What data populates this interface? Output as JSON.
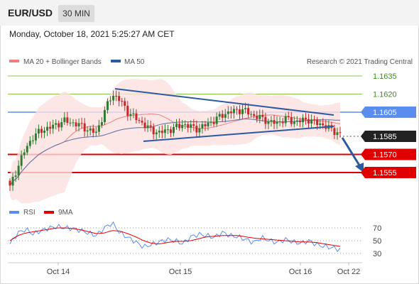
{
  "header": {
    "symbol": "EUR/USD",
    "timeframe": "30 MIN"
  },
  "datetime": "Monday, October 18, 2021 5:25:27 AM CET",
  "copyright": "Research © 2021 Trading Central",
  "legend": {
    "bb": "MA 20 + Bollinger Bands",
    "ma50": "MA 50"
  },
  "rsi_legend": {
    "rsi": "RSI",
    "ma9": "9MA"
  },
  "colors": {
    "up": "#2e7d32",
    "down": "#c62828",
    "resistance": "#8bc34a",
    "pivot": "#5b8def",
    "support": "#e00000",
    "trend": "#2c5aa0",
    "bb_band": "#fde0e0",
    "bb_mid": "#f08080",
    "ma50": "#5a6fa0"
  },
  "chart_data": {
    "type": "candlestick",
    "x_labels": [
      "Oct 14",
      "Oct 15",
      "Oct 16",
      "Oct 22"
    ],
    "y_min": 1.154,
    "y_max": 1.165,
    "levels": [
      {
        "value": 1.1635,
        "label": "1.1635",
        "kind": "resistance"
      },
      {
        "value": 1.162,
        "label": "1.1620",
        "kind": "resistance"
      },
      {
        "value": 1.1605,
        "label": "1.1605",
        "kind": "pivot"
      },
      {
        "value": 1.1585,
        "label": "1.1585",
        "kind": "last"
      },
      {
        "value": 1.157,
        "label": "1.1570",
        "kind": "support"
      },
      {
        "value": 1.1555,
        "label": "1.1555",
        "kind": "support"
      }
    ],
    "close_path": [
      1.1543,
      1.156,
      1.1575,
      1.1585,
      1.159,
      1.1592,
      1.1595,
      1.1598,
      1.1596,
      1.1594,
      1.159,
      1.1588,
      1.1605,
      1.162,
      1.1615,
      1.1605,
      1.16,
      1.1595,
      1.159,
      1.1588,
      1.159,
      1.1592,
      1.1595,
      1.1593,
      1.1591,
      1.1595,
      1.1598,
      1.1603,
      1.1605,
      1.1607,
      1.1606,
      1.1602,
      1.16,
      1.1597,
      1.1596,
      1.16,
      1.1597,
      1.1598,
      1.1599,
      1.1596,
      1.1594,
      1.159,
      1.1587
    ],
    "rsi": {
      "levels": [
        70,
        50,
        30
      ],
      "rsi_path": [
        45,
        62,
        68,
        60,
        66,
        70,
        72,
        70,
        69,
        66,
        62,
        58,
        70,
        78,
        62,
        55,
        48,
        40,
        44,
        48,
        52,
        50,
        45,
        56,
        60,
        58,
        55,
        63,
        58,
        56,
        52,
        47,
        55,
        50,
        47,
        52,
        48,
        46,
        50,
        44,
        41,
        39,
        36
      ],
      "ma9_path": [
        50,
        58,
        62,
        64,
        66,
        68,
        70,
        70,
        69,
        67,
        64,
        61,
        62,
        66,
        65,
        61,
        56,
        50,
        46,
        45,
        47,
        49,
        49,
        50,
        53,
        56,
        57,
        58,
        58,
        58,
        56,
        54,
        53,
        52,
        51,
        50,
        49,
        48,
        48,
        47,
        45,
        43,
        41
      ]
    }
  }
}
